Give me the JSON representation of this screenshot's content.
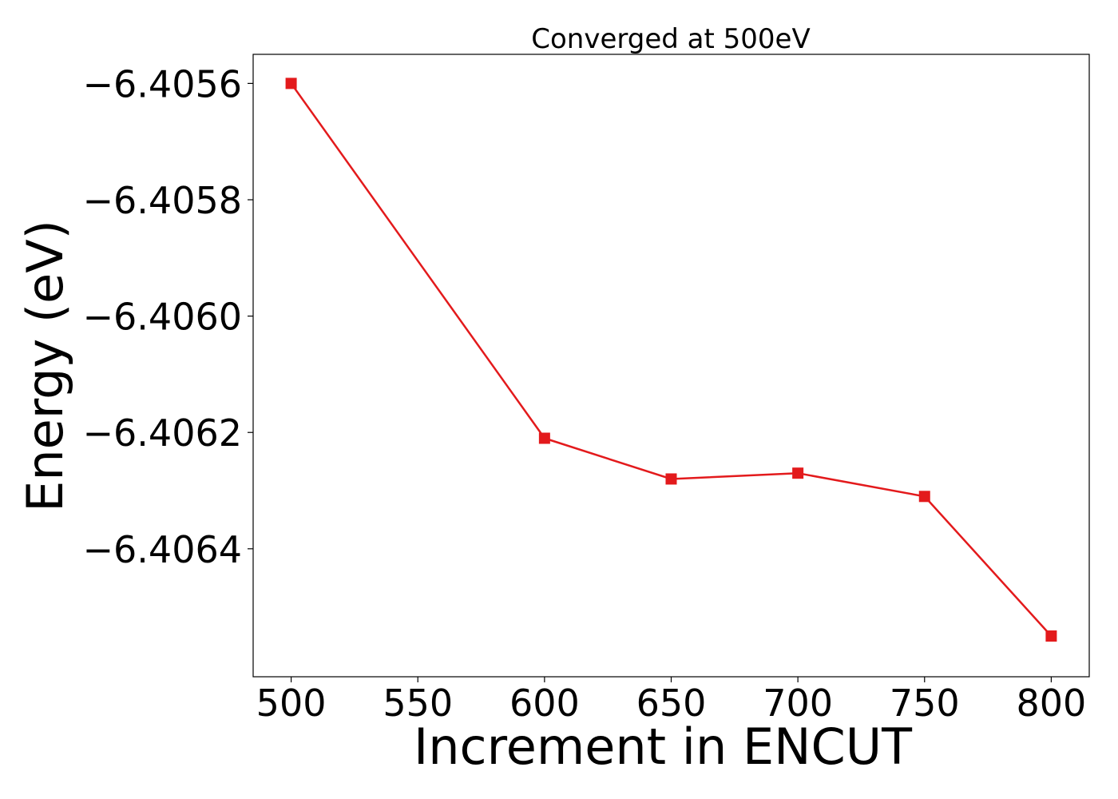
{
  "chart_data": {
    "type": "line",
    "title": "Converged at 500eV",
    "xlabel": "Increment in ENCUT",
    "ylabel": "Energy (eV)",
    "x": [
      500,
      600,
      650,
      700,
      750,
      800
    ],
    "series": [
      {
        "values": [
          -6.4056,
          -6.40621,
          -6.40628,
          -6.40627,
          -6.40631,
          -6.40655
        ],
        "color": "#e31a1c",
        "marker": "square"
      }
    ],
    "xticks": [
      500,
      550,
      600,
      650,
      700,
      750,
      800
    ],
    "xtick_labels": [
      "500",
      "550",
      "600",
      "650",
      "700",
      "750",
      "800"
    ],
    "yticks": [
      -6.4056,
      -6.4058,
      -6.406,
      -6.4062,
      -6.4064
    ],
    "ytick_labels": [
      "−6.4056",
      "−6.4058",
      "−6.4060",
      "−6.4062",
      "−6.4064"
    ],
    "xlim": [
      485,
      815
    ],
    "ylim": [
      -6.40662,
      -6.40555
    ],
    "grid": false
  }
}
